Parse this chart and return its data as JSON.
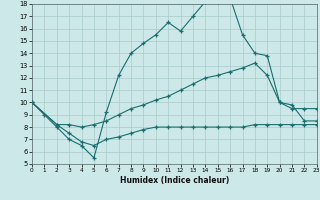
{
  "xlabel": "Humidex (Indice chaleur)",
  "bg_color": "#cce8e8",
  "grid_color": "#aacccc",
  "line_color": "#1a6e6e",
  "xlim": [
    0,
    23
  ],
  "ylim": [
    5,
    18
  ],
  "xticks": [
    0,
    1,
    2,
    3,
    4,
    5,
    6,
    7,
    8,
    9,
    10,
    11,
    12,
    13,
    14,
    15,
    16,
    17,
    18,
    19,
    20,
    21,
    22,
    23
  ],
  "yticks": [
    5,
    6,
    7,
    8,
    9,
    10,
    11,
    12,
    13,
    14,
    15,
    16,
    17,
    18
  ],
  "curve1_x": [
    0,
    1,
    2,
    3,
    4,
    5,
    6,
    7,
    8,
    9,
    10,
    11,
    12,
    13,
    14,
    15,
    16,
    17,
    18,
    19,
    20,
    21,
    22,
    23
  ],
  "curve1_y": [
    10,
    9,
    8,
    7,
    6.5,
    5.5,
    9.2,
    12.2,
    14.0,
    14.8,
    15.5,
    16.5,
    15.8,
    17.0,
    18.2,
    18.2,
    18.5,
    15.5,
    14.0,
    13.8,
    10.0,
    9.5,
    9.5,
    9.5
  ],
  "curve2_x": [
    0,
    2,
    3,
    4,
    5,
    6,
    7,
    8,
    9,
    10,
    11,
    12,
    13,
    14,
    15,
    16,
    17,
    18,
    19,
    20,
    21,
    22,
    23
  ],
  "curve2_y": [
    10,
    8.2,
    8.2,
    8.0,
    8.2,
    8.5,
    9.0,
    9.5,
    9.8,
    10.2,
    10.5,
    11.0,
    11.5,
    12.0,
    12.2,
    12.5,
    12.8,
    13.2,
    12.2,
    10.0,
    9.8,
    8.5,
    8.5
  ],
  "curve3_x": [
    0,
    2,
    3,
    4,
    5,
    6,
    7,
    8,
    9,
    10,
    11,
    12,
    13,
    14,
    15,
    16,
    17,
    18,
    19,
    20,
    21,
    22,
    23
  ],
  "curve3_y": [
    10,
    8.2,
    7.5,
    6.8,
    6.5,
    7.0,
    7.2,
    7.5,
    7.8,
    8.0,
    8.0,
    8.0,
    8.0,
    8.0,
    8.0,
    8.0,
    8.0,
    8.2,
    8.2,
    8.2,
    8.2,
    8.2,
    8.2
  ]
}
